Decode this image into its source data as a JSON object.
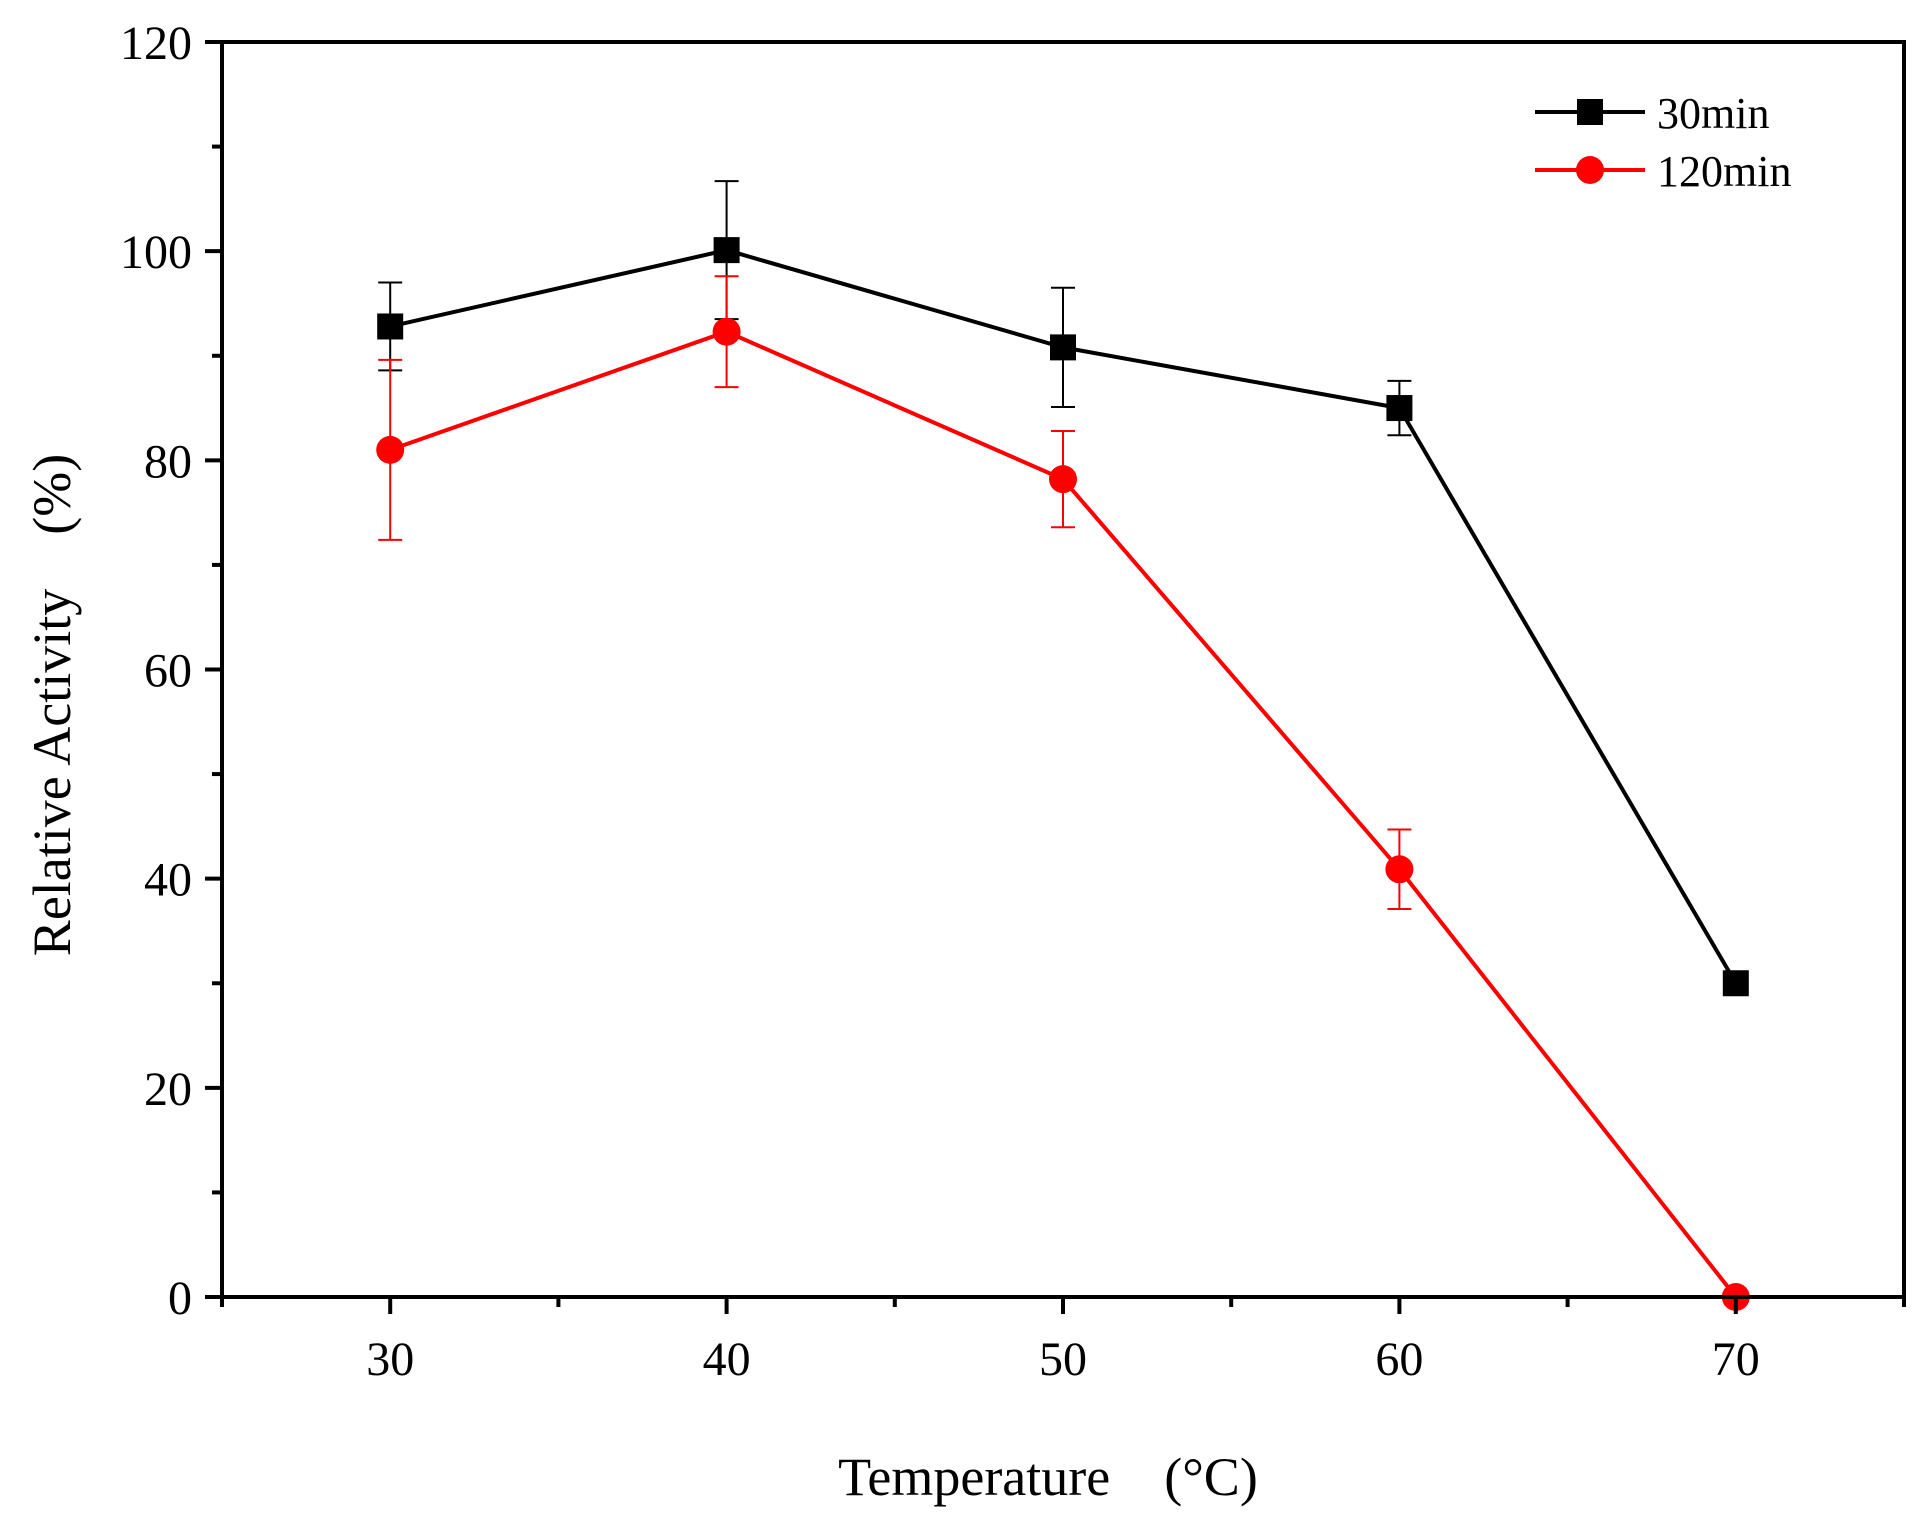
{
  "chart_data": {
    "type": "line",
    "xlabel": "Temperature　(°C)",
    "ylabel": "Relative Activity　(%)",
    "xlim": [
      25,
      75
    ],
    "ylim": [
      0,
      120
    ],
    "x_ticks": [
      30,
      40,
      50,
      60,
      70
    ],
    "y_ticks": [
      0,
      20,
      40,
      60,
      80,
      100,
      120
    ],
    "x_minor_ticks": [
      25,
      35,
      45,
      55,
      65,
      75
    ],
    "y_minor_ticks": [
      10,
      30,
      50,
      70,
      90,
      110
    ],
    "legend_position": "top-right",
    "series": [
      {
        "name": "30min",
        "color": "#000000",
        "marker": "square",
        "x": [
          30,
          40,
          50,
          60,
          70
        ],
        "y": [
          92.8,
          100.1,
          90.8,
          85.0,
          30.0
        ],
        "error": [
          4.2,
          6.6,
          5.7,
          2.6,
          null
        ]
      },
      {
        "name": "120min",
        "color": "#ff0000",
        "marker": "circle",
        "x": [
          30,
          40,
          50,
          60,
          70
        ],
        "y": [
          81.0,
          92.3,
          78.2,
          40.9,
          0.0
        ],
        "error": [
          8.6,
          5.3,
          4.6,
          3.8,
          null
        ]
      }
    ]
  }
}
